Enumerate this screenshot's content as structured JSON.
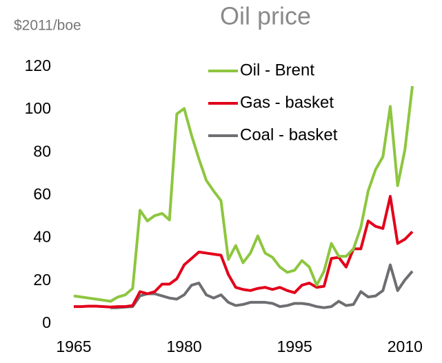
{
  "chart_data": {
    "type": "line",
    "title": "Oil price",
    "y_label": "$2011/boe",
    "x": [
      1965,
      1966,
      1967,
      1968,
      1969,
      1970,
      1971,
      1972,
      1973,
      1974,
      1975,
      1976,
      1977,
      1978,
      1979,
      1980,
      1981,
      1982,
      1983,
      1984,
      1985,
      1986,
      1987,
      1988,
      1989,
      1990,
      1991,
      1992,
      1993,
      1994,
      1995,
      1996,
      1997,
      1998,
      1999,
      2000,
      2001,
      2002,
      2003,
      2004,
      2005,
      2006,
      2007,
      2008,
      2009,
      2010,
      2011
    ],
    "series": [
      {
        "name": "Oil - Brent",
        "color": "#8dc63f",
        "values": [
          13,
          12.5,
          12,
          11.5,
          11,
          10.5,
          12.5,
          13.5,
          16.5,
          53,
          48,
          50.5,
          51.5,
          48.5,
          98,
          100.5,
          88,
          77,
          67,
          62,
          57.5,
          30,
          36.5,
          28.5,
          33,
          41,
          33,
          31,
          26.5,
          24,
          25,
          29.5,
          26.5,
          18,
          24.5,
          37.5,
          31.5,
          31.5,
          35,
          45,
          62,
          72,
          78,
          101.5,
          64.5,
          81.5,
          111
        ]
      },
      {
        "name": "Gas - basket",
        "color": "#e2001a",
        "values": [
          8,
          8,
          8.2,
          8.2,
          8,
          7.8,
          8,
          8,
          8.5,
          15,
          14,
          15,
          18.5,
          18.5,
          21,
          27.5,
          30.5,
          33.5,
          33,
          32.5,
          32,
          23,
          17,
          16,
          15.5,
          16.5,
          17,
          16,
          17,
          15.5,
          14.5,
          18,
          19,
          17,
          17.5,
          30.5,
          31,
          26.5,
          35,
          35,
          48,
          45.5,
          44.5,
          59.5,
          37.5,
          39.5,
          43
        ]
      },
      {
        "name": "Coal - basket",
        "color": "#6d6e71",
        "values": [
          null,
          null,
          null,
          null,
          null,
          7.5,
          7.5,
          7.8,
          8,
          13,
          14,
          14,
          13,
          12,
          11.5,
          13.5,
          18,
          19,
          13.5,
          12,
          13.5,
          10,
          8.5,
          9,
          10,
          10,
          10,
          9.5,
          8,
          8.5,
          9.5,
          9.5,
          9,
          8,
          7.5,
          8,
          10.5,
          8.5,
          9,
          15,
          12.5,
          13,
          15.5,
          27.5,
          15.5,
          20.5,
          24.5
        ]
      }
    ],
    "xlim": [
      1965,
      2011
    ],
    "xticks": [
      1965,
      1980,
      1995,
      2010
    ],
    "ylim": [
      0,
      120
    ],
    "yticks": [
      0,
      20,
      40,
      60,
      80,
      100,
      120
    ],
    "legend": "top",
    "grid": false
  }
}
